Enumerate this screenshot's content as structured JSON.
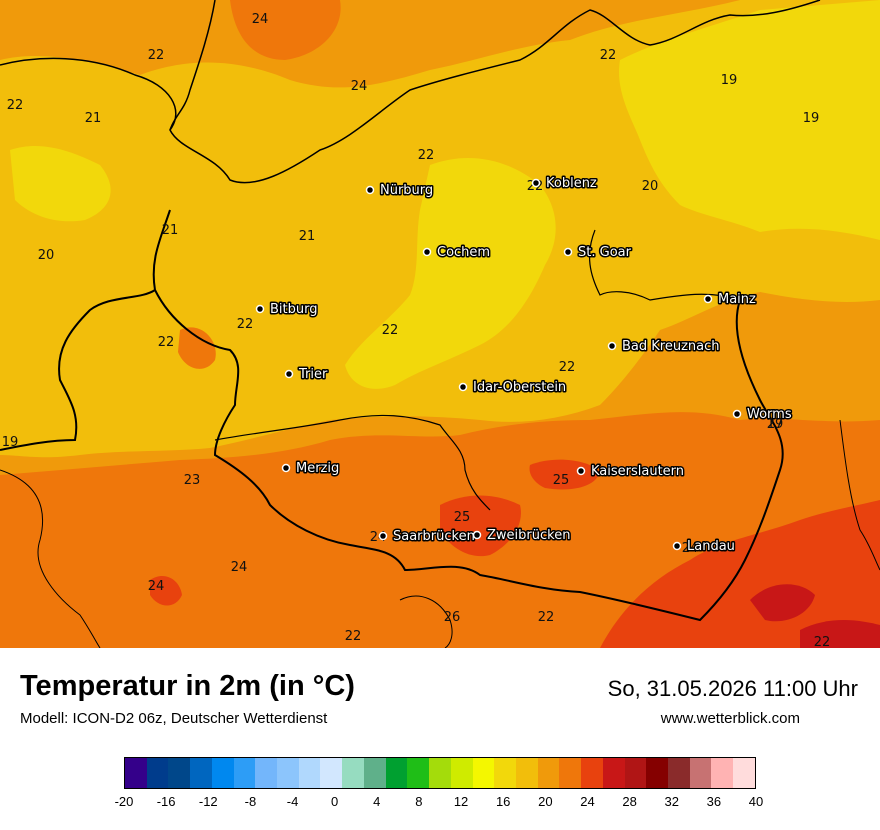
{
  "map": {
    "cities": [
      {
        "name": "Nürburg"
      },
      {
        "name": "Koblenz"
      },
      {
        "name": "Cochem"
      },
      {
        "name": "St. Goar"
      },
      {
        "name": "Mainz"
      },
      {
        "name": "Bitburg"
      },
      {
        "name": "Bad Kreuznach"
      },
      {
        "name": "Trier"
      },
      {
        "name": "Idar-Oberstein"
      },
      {
        "name": "Worms"
      },
      {
        "name": "Merzig"
      },
      {
        "name": "Kaiserslautern"
      },
      {
        "name": "Saarbrücken"
      },
      {
        "name": "Zweibrücken"
      },
      {
        "name": "Landau"
      }
    ],
    "temperature_labels": [
      "24",
      "22",
      "24",
      "22",
      "21",
      "22",
      "22",
      "19",
      "19",
      "22",
      "21",
      "20",
      "20",
      "21",
      "19",
      "22",
      "22",
      "22",
      "22",
      "19",
      "23",
      "24",
      "25",
      "25",
      "24",
      "24",
      "24",
      "26",
      "22",
      "22",
      "22",
      "27"
    ]
  },
  "footer": {
    "title": "Temperatur in 2m (in °C)",
    "subtitle": "Modell: ICON-D2 06z, Deutscher Wetterdienst",
    "datetime": "So, 31.05.2026 11:00 Uhr",
    "website": "www.wetterblick.com"
  },
  "legend": {
    "colors": [
      "#34008a",
      "#003c8c",
      "#00478a",
      "#0066bf",
      "#0088ef",
      "#2d9df6",
      "#73b6fb",
      "#8cc5fc",
      "#b0d8fd",
      "#d2e7fe",
      "#96dcc0",
      "#5fb08a",
      "#00a030",
      "#1fbe17",
      "#a4dc0b",
      "#cfeb00",
      "#f4f700",
      "#f2d80b",
      "#f2be0b",
      "#f09a0b",
      "#ef770b",
      "#e8420e",
      "#c81717",
      "#b01515",
      "#850000",
      "#8a2b2b",
      "#c77272",
      "#ffb3b3",
      "#ffdcdc"
    ],
    "ticks": [
      "-20",
      "-16",
      "-12",
      "-8",
      "-4",
      "0",
      "4",
      "8",
      "12",
      "16",
      "20",
      "24",
      "28",
      "32",
      "36",
      "40"
    ],
    "min": -20,
    "max": 40
  }
}
